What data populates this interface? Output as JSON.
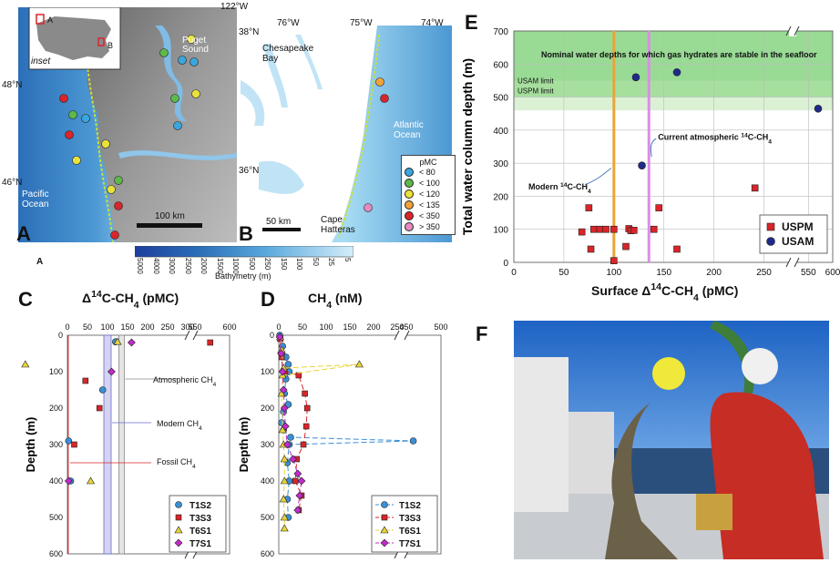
{
  "figure": {
    "panel_labels": {
      "a": "A",
      "b": "B",
      "c": "C",
      "d": "D",
      "e": "E",
      "f": "F"
    },
    "small_a_caption": "A"
  },
  "map_a": {
    "inset_label": "inset",
    "inset_a": "A",
    "inset_b": "B",
    "lon_label": "122°W",
    "lat_top": "48°N",
    "lat_bottom": "46°N",
    "sound_label": "Puget\nSound",
    "ocean_label": "Pacific\nOcean",
    "scale_label": "100 km"
  },
  "map_b": {
    "lon_labels": [
      "76°W",
      "75°W",
      "74°W"
    ],
    "lat_labels": [
      "38°N",
      "36°N"
    ],
    "bay_label": "Chesapeake\nBay",
    "ocean_label": "Atlantic\nOcean",
    "cape_label": "Cape\nHatteras",
    "scale_label": "50 km",
    "pmc_title": "pMC",
    "pmc_items": [
      {
        "label": "< 80",
        "color": "#3aa6dd"
      },
      {
        "label": "< 100",
        "color": "#5db94a"
      },
      {
        "label": "< 120",
        "color": "#e8e23a"
      },
      {
        "label": "< 135",
        "color": "#f0a23a"
      },
      {
        "label": "< 350",
        "color": "#d9252a"
      },
      {
        "label": "> 350",
        "color": "#e48bc0"
      }
    ]
  },
  "bathymetry": {
    "title": "Bathymetry (m)",
    "ticks": [
      "5000",
      "4000",
      "3000",
      "2500",
      "2000",
      "1500",
      "1000",
      "500",
      "250",
      "150",
      "100",
      "50",
      "25",
      "5"
    ]
  },
  "chart_data": [
    {
      "id": "E",
      "type": "scatter",
      "xlabel": "Surface Δ14C-CH4 (pMC)",
      "ylabel": "Total water column depth (m)",
      "x_ticks": [
        "0",
        "50",
        "100",
        "150",
        "200",
        "250",
        "550",
        "600"
      ],
      "y_ticks": [
        "0",
        "100",
        "200",
        "300",
        "400",
        "500",
        "600",
        "700"
      ],
      "xlim_main": [
        0,
        275
      ],
      "xlim_break": [
        525,
        600
      ],
      "ylim": [
        0,
        700
      ],
      "band_text": "Nominal water depths for which gas hydrates are stable in the seafloor",
      "usam_limit_label": "USAM limit",
      "uspm_limit_label": "USPM limit",
      "usam_limit": 550,
      "uspm_limit": 500,
      "modern_label": "Modern 14C-CH4",
      "modern_x": 100,
      "atmos_label": "Current atmospheric 14C-CH4",
      "atmos_x": 135,
      "legend": [
        "USPM",
        "USAM"
      ],
      "series": [
        {
          "name": "USPM",
          "color": "#d9252a",
          "shape": "square",
          "points": [
            [
              75,
              165
            ],
            [
              77,
              40
            ],
            [
              68,
              92
            ],
            [
              80,
              100
            ],
            [
              86,
              100
            ],
            [
              92,
              100
            ],
            [
              100,
              100
            ],
            [
              100,
              5
            ],
            [
              112,
              48
            ],
            [
              115,
              102
            ],
            [
              117,
              96
            ],
            [
              120,
              97
            ],
            [
              140,
              100
            ],
            [
              145,
              165
            ],
            [
              163,
              40
            ],
            [
              241,
              225
            ]
          ]
        },
        {
          "name": "USAM",
          "color": "#1f2a8a",
          "shape": "circle",
          "points": [
            [
              122,
              560
            ],
            [
              128,
              293
            ],
            [
              163,
              575
            ],
            [
              570,
              465
            ]
          ]
        }
      ]
    },
    {
      "id": "C",
      "type": "scatter",
      "title": "Δ14C-CH4 (pMC)",
      "ylabel": "Depth (m)",
      "x_ticks": [
        "0",
        "50",
        "100",
        "150",
        "200",
        "250",
        "300",
        "550",
        "600"
      ],
      "y_ticks": [
        "0",
        "100",
        "200",
        "300",
        "400",
        "500",
        "600"
      ],
      "ylim": [
        600,
        0
      ],
      "annotations": [
        "Atmospheric CH4",
        "Modern CH4",
        "Fossil CH4"
      ],
      "legend": [
        "T1S2",
        "T3S3",
        "T6S1",
        "T7S1"
      ],
      "series": [
        {
          "name": "T1S2",
          "color": "#3a8fd6",
          "shape": "circle",
          "points": [
            [
              120,
              18
            ],
            [
              88,
              150
            ],
            [
              3,
              290
            ],
            [
              8,
              400
            ]
          ]
        },
        {
          "name": "T3S3",
          "color": "#d9252a",
          "shape": "square",
          "points": [
            [
              572,
              20
            ],
            [
              45,
              125
            ],
            [
              80,
              200
            ],
            [
              17,
              300
            ]
          ]
        },
        {
          "name": "T6S1",
          "color": "#e8d43a",
          "shape": "triangle",
          "points": [
            [
              125,
              18
            ],
            [
              305,
              80
            ],
            [
              58,
              400
            ]
          ]
        },
        {
          "name": "T7S1",
          "color": "#c32acb",
          "shape": "diamond",
          "points": [
            [
              160,
              20
            ],
            [
              110,
              100
            ],
            [
              3,
              400
            ]
          ]
        }
      ]
    },
    {
      "id": "D",
      "type": "line",
      "title": "CH4 (nM)",
      "ylabel": "Depth (m)",
      "x_ticks": [
        "0",
        "50",
        "100",
        "150",
        "200",
        "250",
        "450",
        "500"
      ],
      "y_ticks": [
        "0",
        "100",
        "200",
        "300",
        "400",
        "500",
        "600"
      ],
      "ylim": [
        600,
        0
      ],
      "legend": [
        "T1S2",
        "T3S3",
        "T6S1",
        "T7S1"
      ],
      "series": [
        {
          "name": "T1S2",
          "color": "#3a8fd6",
          "shape": "circle",
          "dash": "6,3",
          "points": [
            [
              2,
              0
            ],
            [
              8,
              30
            ],
            [
              15,
              60
            ],
            [
              20,
              80
            ],
            [
              22,
              100
            ],
            [
              15,
              120
            ],
            [
              12,
              160
            ],
            [
              20,
              190
            ],
            [
              10,
              210
            ],
            [
              6,
              240
            ],
            [
              10,
              260
            ],
            [
              25,
              280
            ],
            [
              460,
              290
            ],
            [
              22,
              300
            ],
            [
              18,
              350
            ],
            [
              22,
              400
            ],
            [
              18,
              450
            ],
            [
              20,
              500
            ]
          ]
        },
        {
          "name": "T3S3",
          "color": "#d9252a",
          "shape": "square",
          "dash": "6,3",
          "points": [
            [
              3,
              10
            ],
            [
              6,
              60
            ],
            [
              12,
              100
            ],
            [
              42,
              110
            ],
            [
              55,
              160
            ],
            [
              60,
              200
            ],
            [
              58,
              250
            ],
            [
              52,
              300
            ],
            [
              38,
              340
            ],
            [
              35,
              400
            ],
            [
              48,
              440
            ],
            [
              42,
              480
            ]
          ]
        },
        {
          "name": "T6S1",
          "color": "#e8d43a",
          "shape": "triangle",
          "dash": "6,3",
          "points": [
            [
              3,
              5
            ],
            [
              6,
              40
            ],
            [
              10,
              90
            ],
            [
              170,
              80
            ],
            [
              8,
              110
            ],
            [
              6,
              160
            ],
            [
              8,
              260
            ],
            [
              10,
              300
            ],
            [
              12,
              340
            ],
            [
              12,
              400
            ],
            [
              10,
              450
            ],
            [
              12,
              500
            ],
            [
              12,
              530
            ]
          ]
        },
        {
          "name": "T7S1",
          "color": "#c32acb",
          "shape": "diamond",
          "dash": "6,3",
          "points": [
            [
              2,
              5
            ],
            [
              5,
              50
            ],
            [
              8,
              100
            ],
            [
              10,
              150
            ],
            [
              12,
              200
            ],
            [
              14,
              250
            ],
            [
              18,
              300
            ],
            [
              30,
              340
            ],
            [
              40,
              380
            ],
            [
              48,
              400
            ],
            [
              44,
              440
            ],
            [
              40,
              480
            ]
          ]
        }
      ]
    }
  ]
}
